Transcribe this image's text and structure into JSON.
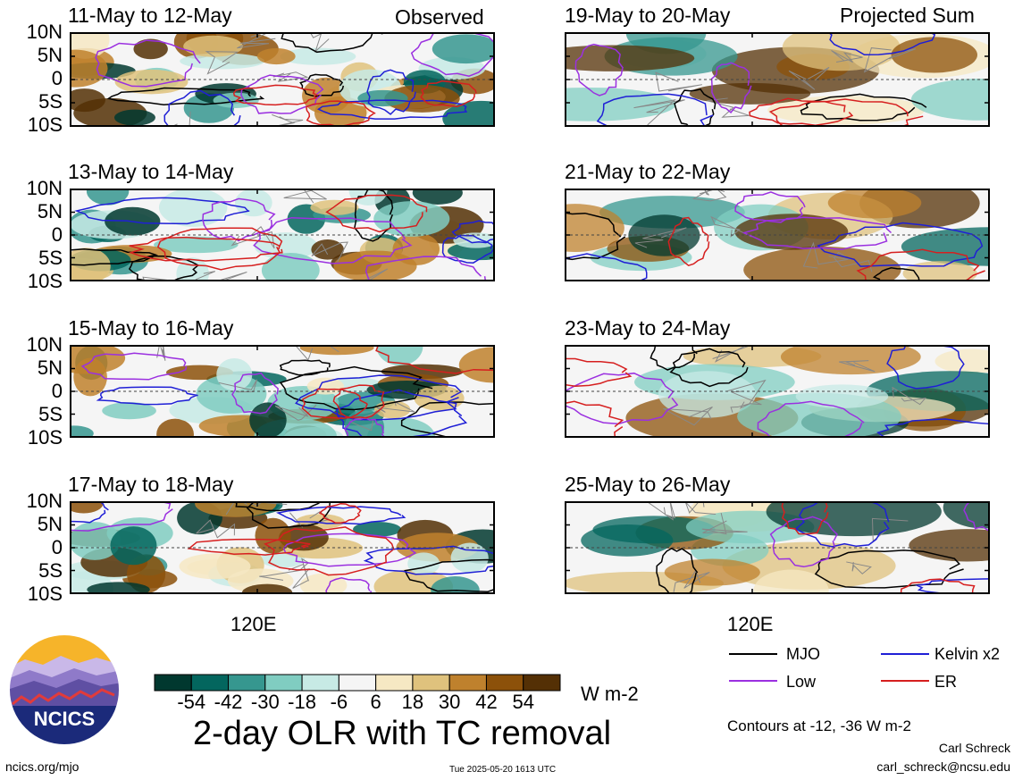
{
  "chart_data": {
    "type": "heatmap",
    "title": "2-day OLR with TC removal",
    "units": "W m-2",
    "colorbar": {
      "tick_labels": [
        "-54",
        "-42",
        "-30",
        "-18",
        "-6",
        "6",
        "18",
        "30",
        "42",
        "54"
      ],
      "colors": [
        "#01382f",
        "#03665e",
        "#36978f",
        "#80cdc1",
        "#c7eae5",
        "#f5f5f5",
        "#f6e8c3",
        "#dfc27d",
        "#bf812d",
        "#8c510a",
        "#543005"
      ]
    },
    "y_ticks": [
      "10N",
      "5N",
      "0",
      "5S",
      "10S"
    ],
    "x_tick": "120E",
    "column_labels": {
      "left": "Observed",
      "right": "Projected Sum"
    },
    "panels_left": [
      {
        "title": "11-May to 12-May"
      },
      {
        "title": "13-May to 14-May"
      },
      {
        "title": "15-May to 16-May"
      },
      {
        "title": "17-May to 18-May"
      }
    ],
    "panels_right": [
      {
        "title": "19-May to 20-May"
      },
      {
        "title": "21-May to 22-May"
      },
      {
        "title": "23-May to 24-May"
      },
      {
        "title": "25-May to 26-May"
      }
    ],
    "contours": {
      "note": "Contours at -12, -36 W m-2",
      "series": [
        {
          "name": "MJO",
          "color": "#000000"
        },
        {
          "name": "Kelvin x2",
          "color": "#1f1fd6"
        },
        {
          "name": "Low",
          "color": "#9b30e0"
        },
        {
          "name": "ER",
          "color": "#d61f1f"
        }
      ]
    }
  },
  "logo": {
    "text": "NCICS"
  },
  "footer": {
    "url": "ncics.org/mjo",
    "timestamp": "Tue 2025-05-20 1613 UTC",
    "author": "Carl Schreck",
    "email": "carl_schreck@ncsu.edu"
  }
}
